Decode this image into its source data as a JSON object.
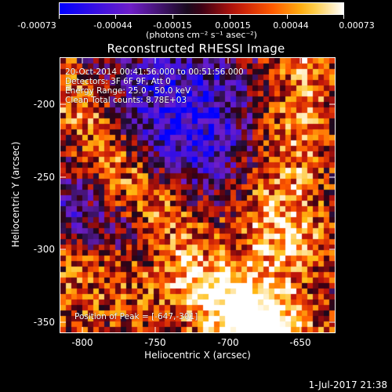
{
  "colorbar": {
    "ticks": [
      "-0.00073",
      "-0.00044",
      "-0.00015",
      "0.00015",
      "0.00044",
      "0.00073"
    ],
    "units": "(photons cm⁻² s⁻¹ asec⁻²)"
  },
  "plot": {
    "title": "Reconstructed RHESSI Image",
    "annotation": {
      "line1": "20-Oct-2014 00:41:56.000 to 00:51:56.000",
      "line2": "Detectors: 3F 6F 9F, Att 0",
      "line3": "Energy Range: 25.0 - 50.0 keV",
      "line4": "Clean     Total counts: 8.78E+03"
    },
    "peak": "Position of Peak = [-647,-301]",
    "xlabel": "Heliocentric X (arcsec)",
    "ylabel": "Heliocentric Y (arcsec)",
    "xticks": [
      "-800",
      "-750",
      "-700",
      "-650"
    ],
    "yticks": [
      "-200",
      "-250",
      "-300",
      "-350"
    ]
  },
  "timestamp": "1-Jul-2017 21:38",
  "colors": {
    "background": "#000000",
    "text": "#ffffff"
  },
  "chart_data": {
    "type": "heatmap",
    "title": "Reconstructed RHESSI Image",
    "xlabel": "Heliocentric X (arcsec)",
    "ylabel": "Heliocentric Y (arcsec)",
    "xlim": [
      -815,
      -625
    ],
    "ylim": [
      -360,
      -170
    ],
    "xticks": [
      -800,
      -750,
      -700,
      -650
    ],
    "yticks": [
      -200,
      -250,
      -300,
      -350
    ],
    "colorbar": {
      "range": [
        -0.00073,
        0.00073
      ],
      "ticks": [
        -0.00073,
        -0.00044,
        -0.00015,
        0.00015,
        0.00044,
        0.00073
      ],
      "units": "photons cm^-2 s^-1 asec^-2"
    },
    "peak_position": [
      -647,
      -301
    ]
  }
}
